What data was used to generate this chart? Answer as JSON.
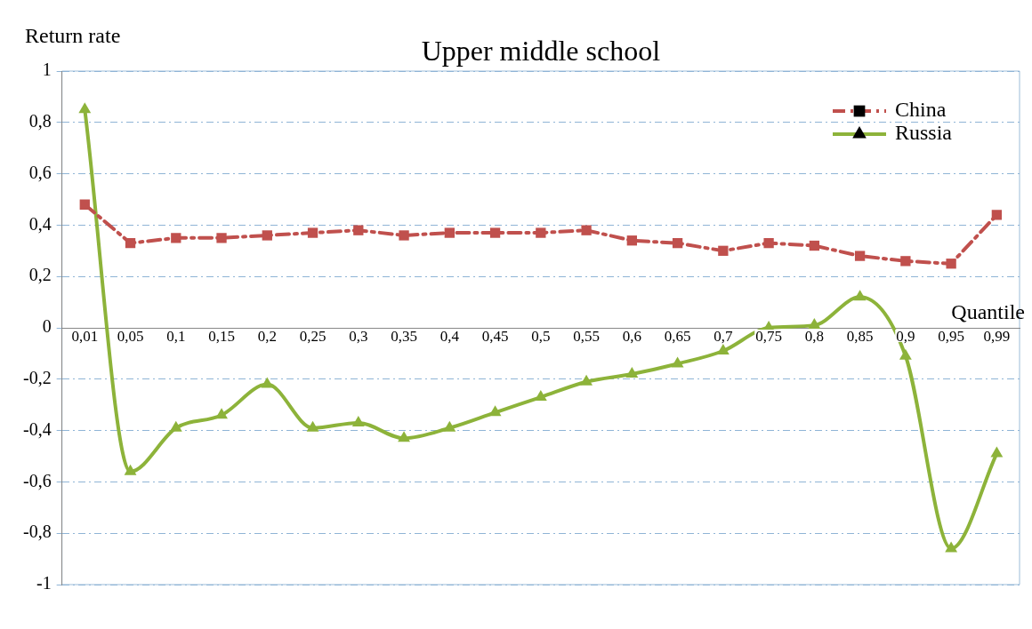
{
  "chart_data": {
    "type": "line",
    "title": "Upper middle school",
    "xlabel": "Quantile",
    "ylabel": "Return rate",
    "categories": [
      "0,01",
      "0,05",
      "0,1",
      "0,15",
      "0,2",
      "0,25",
      "0,3",
      "0,35",
      "0,4",
      "0,45",
      "0,5",
      "0,55",
      "0,6",
      "0,65",
      "0,7",
      "0,75",
      "0,8",
      "0,85",
      "0,9",
      "0,95",
      "0,99"
    ],
    "series": [
      {
        "name": "China",
        "color": "#c0504d",
        "marker": "square",
        "line_style": "dashed",
        "values": [
          0.48,
          0.33,
          0.35,
          0.35,
          0.36,
          0.37,
          0.38,
          0.36,
          0.37,
          0.37,
          0.37,
          0.38,
          0.34,
          0.33,
          0.3,
          0.33,
          0.32,
          0.28,
          0.26,
          0.25,
          0.44
        ]
      },
      {
        "name": "Russia",
        "color": "#8db33a",
        "marker": "triangle",
        "line_style": "solid",
        "values": [
          0.85,
          -0.56,
          -0.39,
          -0.34,
          -0.22,
          -0.39,
          -0.37,
          -0.43,
          -0.39,
          -0.33,
          -0.27,
          -0.21,
          -0.18,
          -0.14,
          -0.09,
          0.0,
          0.01,
          0.12,
          -0.11,
          -0.86,
          -0.49
        ]
      }
    ],
    "ylim": [
      -1,
      1
    ],
    "yticks": [
      -1,
      {
        "value": -0.8,
        "label": "-0,8"
      },
      {
        "value": -0.6,
        "label": "-0,6"
      },
      {
        "value": -0.4,
        "label": "-0,4"
      },
      {
        "value": -0.2,
        "label": "-0,2"
      },
      0,
      {
        "value": 0.2,
        "label": "0,2"
      },
      {
        "value": 0.4,
        "label": "0,4"
      },
      {
        "value": 0.6,
        "label": "0,6"
      },
      {
        "value": 0.8,
        "label": "0,8"
      },
      1
    ],
    "grid": "y",
    "legend": "top right"
  }
}
